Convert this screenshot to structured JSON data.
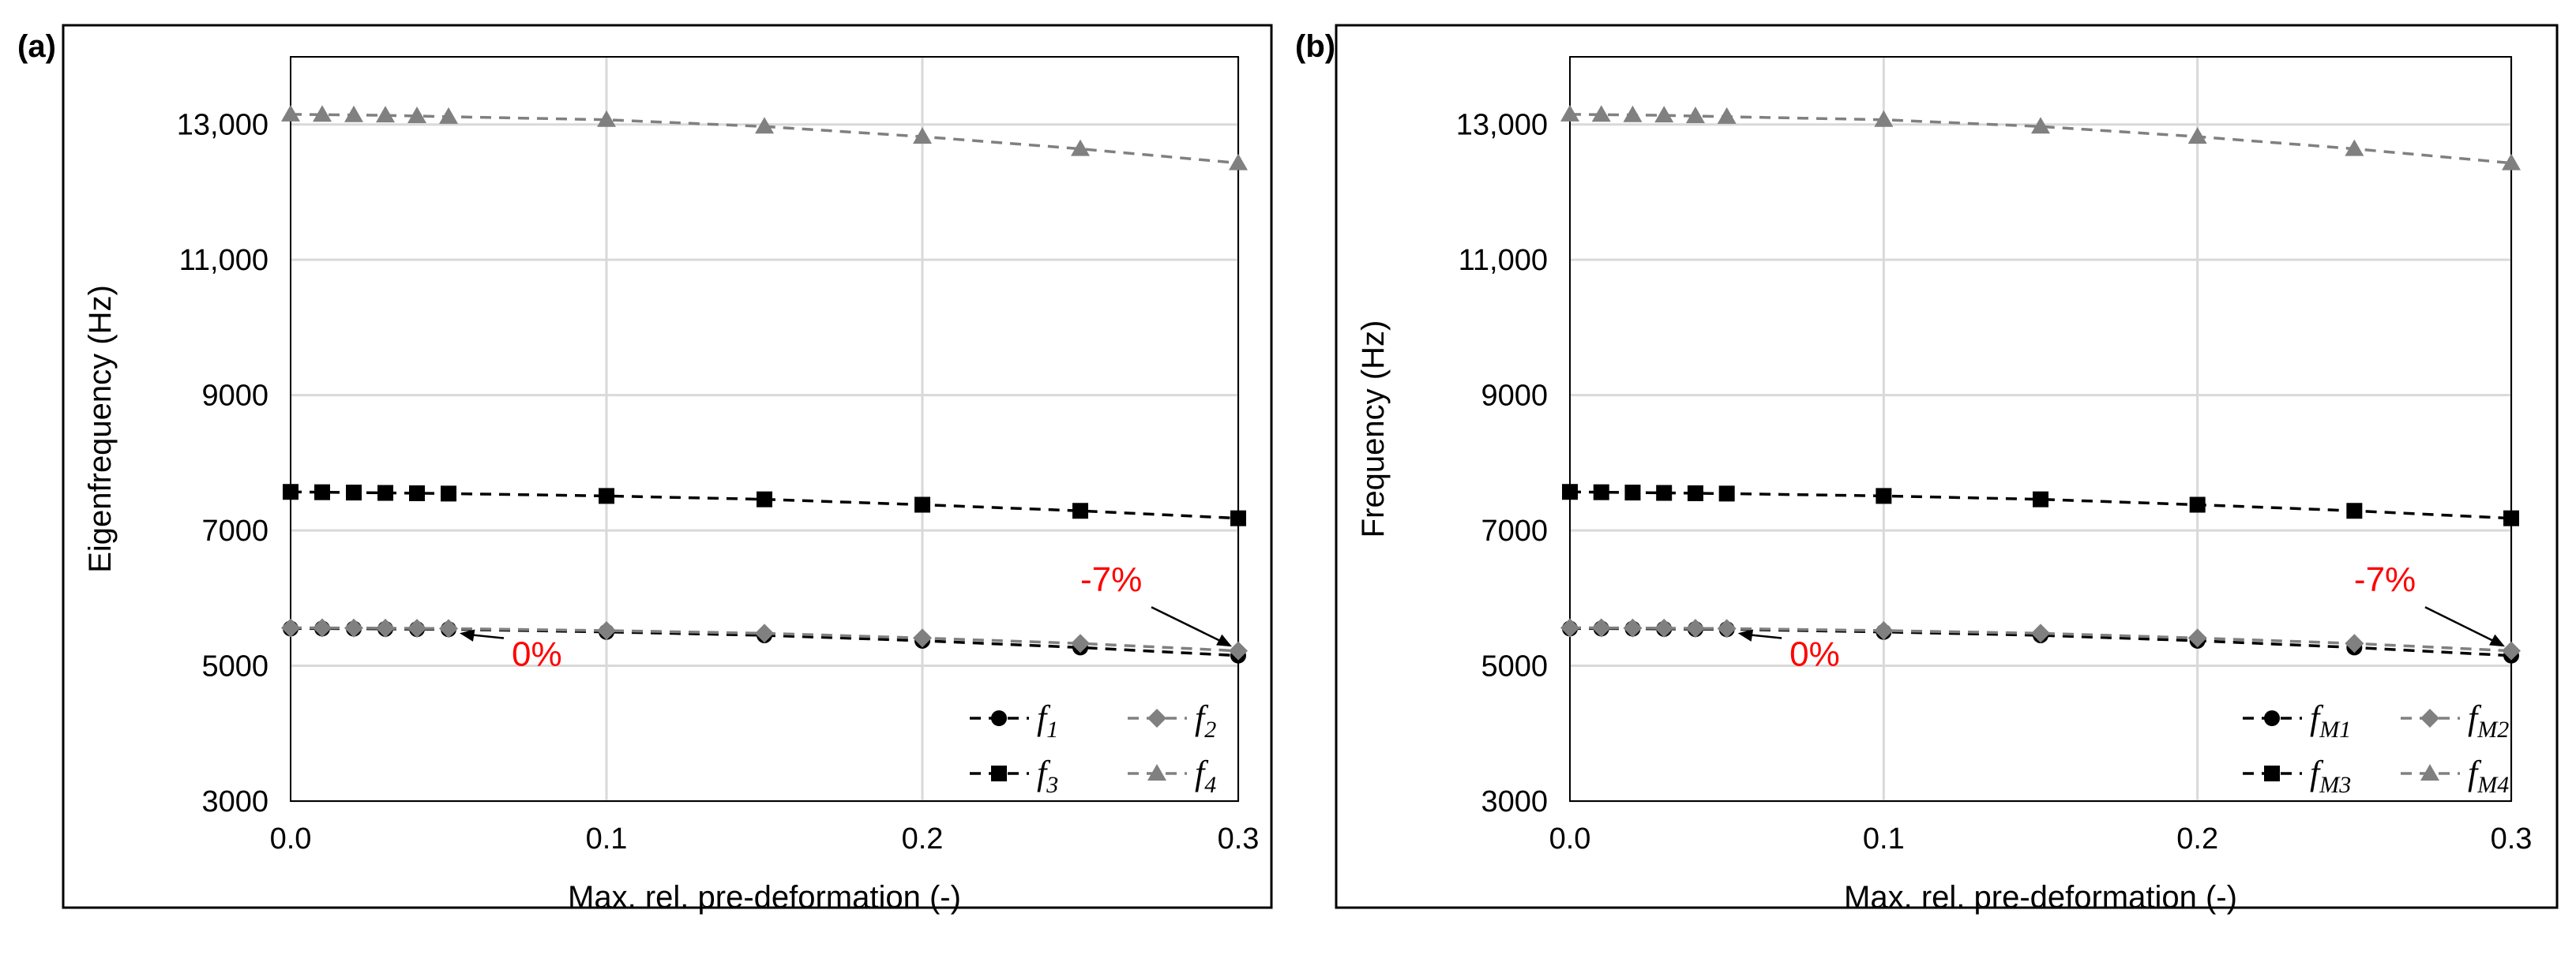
{
  "chart_data": [
    {
      "type": "line",
      "panel_label": "(a)",
      "xlabel": "Max. rel. pre-deformation (-)",
      "ylabel": "Eigenfrequency (Hz)",
      "xlim": [
        0,
        0.3
      ],
      "ylim": [
        3000,
        14000
      ],
      "x_ticks": [
        "0.0",
        "0.1",
        "0.2",
        "0.3"
      ],
      "x_tick_values": [
        0,
        0.1,
        0.2,
        0.3
      ],
      "y_ticks": [
        "3000",
        "5000",
        "7000",
        "9000",
        "11,000",
        "13,000"
      ],
      "y_tick_values": [
        3000,
        5000,
        7000,
        9000,
        11000,
        13000
      ],
      "grid": true,
      "legend_position": "bottom-right",
      "x": [
        0,
        0.01,
        0.02,
        0.03,
        0.04,
        0.05,
        0.1,
        0.15,
        0.2,
        0.25,
        0.3
      ],
      "series": [
        {
          "name": "f",
          "sub": "1",
          "marker": "circle",
          "color": "#000000",
          "values": [
            5550,
            5550,
            5548,
            5545,
            5542,
            5540,
            5500,
            5450,
            5370,
            5270,
            5150
          ]
        },
        {
          "name": "f",
          "sub": "2",
          "marker": "diamond",
          "color": "#808080",
          "values": [
            5560,
            5560,
            5558,
            5556,
            5553,
            5550,
            5520,
            5480,
            5410,
            5330,
            5220
          ]
        },
        {
          "name": "f",
          "sub": "3",
          "marker": "square",
          "color": "#000000",
          "values": [
            7570,
            7565,
            7560,
            7555,
            7550,
            7545,
            7510,
            7460,
            7380,
            7290,
            7180
          ]
        },
        {
          "name": "f",
          "sub": "4",
          "marker": "triangle",
          "color": "#808080",
          "values": [
            13150,
            13145,
            13140,
            13135,
            13125,
            13115,
            13070,
            12970,
            12820,
            12640,
            12430
          ]
        }
      ],
      "annotations": [
        {
          "text": "0%",
          "color": "#ff0000",
          "x": 0.05,
          "y": 5540,
          "label_x": 0.07,
          "label_y": 5000
        },
        {
          "text": "-7%",
          "color": "#ff0000",
          "x": 0.3,
          "y": 5190,
          "label_x": 0.265,
          "label_y": 6100
        }
      ]
    },
    {
      "type": "line",
      "panel_label": "(b)",
      "xlabel": "Max. rel. pre-deformation (-)",
      "ylabel": "Frequency (Hz)",
      "xlim": [
        0,
        0.3
      ],
      "ylim": [
        3000,
        14000
      ],
      "x_ticks": [
        "0.0",
        "0.1",
        "0.2",
        "0.3"
      ],
      "x_tick_values": [
        0,
        0.1,
        0.2,
        0.3
      ],
      "y_ticks": [
        "3000",
        "5000",
        "7000",
        "9000",
        "11,000",
        "13,000"
      ],
      "y_tick_values": [
        3000,
        5000,
        7000,
        9000,
        11000,
        13000
      ],
      "grid": true,
      "legend_position": "bottom-right",
      "x": [
        0,
        0.01,
        0.02,
        0.03,
        0.04,
        0.05,
        0.1,
        0.15,
        0.2,
        0.25,
        0.3
      ],
      "series": [
        {
          "name": "f",
          "sub": "M1",
          "marker": "circle",
          "color": "#000000",
          "values": [
            5550,
            5550,
            5548,
            5545,
            5542,
            5540,
            5500,
            5450,
            5370,
            5270,
            5150
          ]
        },
        {
          "name": "f",
          "sub": "M2",
          "marker": "diamond",
          "color": "#808080",
          "values": [
            5560,
            5560,
            5558,
            5556,
            5553,
            5550,
            5520,
            5480,
            5410,
            5330,
            5220
          ]
        },
        {
          "name": "f",
          "sub": "M3",
          "marker": "square",
          "color": "#000000",
          "values": [
            7570,
            7565,
            7560,
            7555,
            7550,
            7545,
            7510,
            7460,
            7380,
            7290,
            7180
          ]
        },
        {
          "name": "f",
          "sub": "M4",
          "marker": "triangle",
          "color": "#808080",
          "values": [
            13150,
            13145,
            13140,
            13135,
            13125,
            13115,
            13070,
            12970,
            12820,
            12640,
            12430
          ]
        }
      ],
      "annotations": [
        {
          "text": "0%",
          "color": "#ff0000",
          "x": 0.05,
          "y": 5540,
          "label_x": 0.07,
          "label_y": 5000
        },
        {
          "text": "-7%",
          "color": "#ff0000",
          "x": 0.3,
          "y": 5190,
          "label_x": 0.265,
          "label_y": 6100
        }
      ]
    }
  ]
}
